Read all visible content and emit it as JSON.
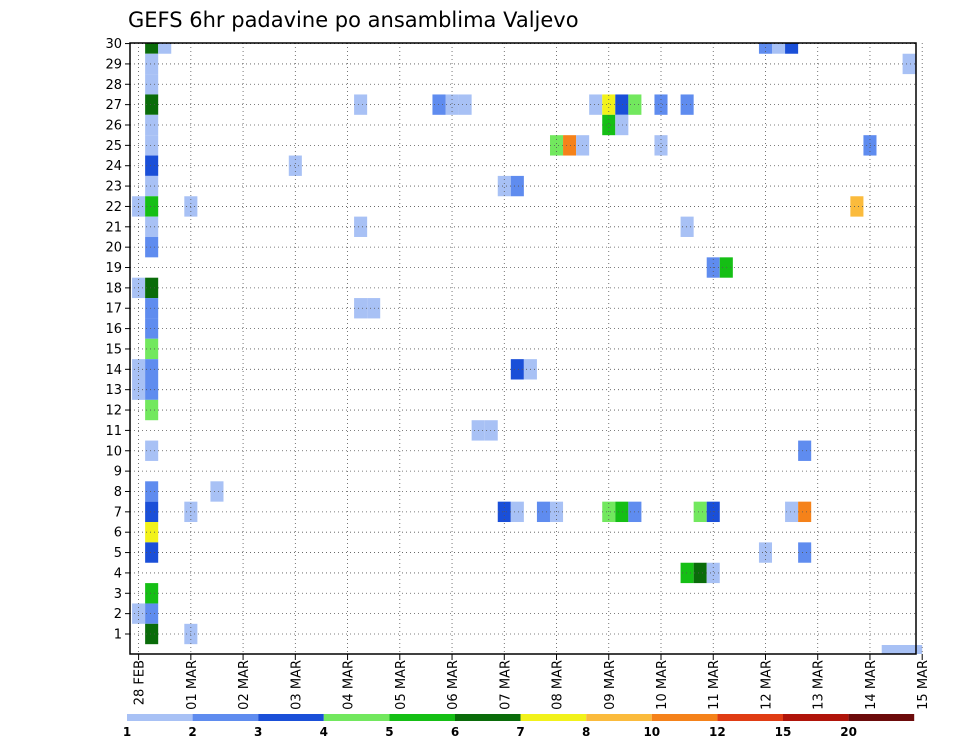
{
  "chart_data": {
    "type": "heatmap",
    "title": "GEFS 6hr padavine po ansamblima Valjevo",
    "xlabel": "",
    "ylabel": "",
    "x_unit": "6h step from 28 FEB 00Z",
    "x_range": [
      0,
      60
    ],
    "y_range": [
      0,
      30
    ],
    "y_ticks": [
      "1",
      "2",
      "3",
      "4",
      "5",
      "6",
      "7",
      "8",
      "9",
      "10",
      "11",
      "12",
      "13",
      "14",
      "15",
      "16",
      "17",
      "18",
      "19",
      "20",
      "21",
      "22",
      "23",
      "24",
      "25",
      "26",
      "27",
      "28",
      "29",
      "30"
    ],
    "x_ticks": [
      "28 FEB",
      "01 MAR",
      "02 MAR",
      "03 MAR",
      "04 MAR",
      "05 MAR",
      "06 MAR",
      "07 MAR",
      "08 MAR",
      "09 MAR",
      "10 MAR",
      "11 MAR",
      "12 MAR",
      "13 MAR",
      "14 MAR",
      "15 MAR"
    ],
    "grid": true,
    "colorbar": {
      "labels": [
        "1",
        "2",
        "3",
        "4",
        "5",
        "6",
        "7",
        "8",
        "10",
        "12",
        "15",
        "20"
      ],
      "colors": [
        "#a8c1f5",
        "#5f8cef",
        "#1a4fd8",
        "#72e85e",
        "#15bf15",
        "#0a6c0a",
        "#f2f21a",
        "#fbbb3c",
        "#f5821a",
        "#e03c14",
        "#b0140a",
        "#6c0b0b"
      ]
    },
    "cells": [
      [
        1,
        30,
        6
      ],
      [
        2,
        30,
        1
      ],
      [
        1,
        29,
        1
      ],
      [
        1,
        28,
        1
      ],
      [
        1,
        27,
        6
      ],
      [
        1,
        26,
        1
      ],
      [
        1,
        25,
        1
      ],
      [
        1,
        24,
        3
      ],
      [
        1,
        23,
        1
      ],
      [
        0,
        22,
        1
      ],
      [
        1,
        22,
        5
      ],
      [
        1,
        21,
        1
      ],
      [
        1,
        20,
        2
      ],
      [
        0,
        18,
        1
      ],
      [
        1,
        18,
        6
      ],
      [
        1,
        17,
        2
      ],
      [
        1,
        16,
        2
      ],
      [
        1,
        15,
        4
      ],
      [
        0,
        14,
        1
      ],
      [
        1,
        14,
        2
      ],
      [
        0,
        13,
        1
      ],
      [
        1,
        13,
        2
      ],
      [
        1,
        12,
        4
      ],
      [
        1,
        10,
        1
      ],
      [
        1,
        8,
        2
      ],
      [
        1,
        7,
        3
      ],
      [
        1,
        6,
        7
      ],
      [
        1,
        5,
        3
      ],
      [
        1,
        3,
        5
      ],
      [
        0,
        2,
        1
      ],
      [
        1,
        2,
        2
      ],
      [
        1,
        1,
        6
      ],
      [
        4,
        22,
        1
      ],
      [
        4,
        7,
        1
      ],
      [
        4,
        1,
        1
      ],
      [
        6,
        8,
        1
      ],
      [
        12,
        24,
        1
      ],
      [
        17,
        27,
        1
      ],
      [
        17,
        21,
        1
      ],
      [
        17,
        17,
        1
      ],
      [
        18,
        17,
        1
      ],
      [
        23,
        27,
        2
      ],
      [
        24,
        27,
        1
      ],
      [
        25,
        27,
        1
      ],
      [
        26,
        11,
        1
      ],
      [
        27,
        11,
        1
      ],
      [
        28,
        23,
        1
      ],
      [
        29,
        23,
        2
      ],
      [
        28,
        7,
        3
      ],
      [
        29,
        7,
        1
      ],
      [
        29,
        14,
        3
      ],
      [
        30,
        14,
        1
      ],
      [
        31,
        7,
        2
      ],
      [
        32,
        7,
        1
      ],
      [
        32,
        25,
        4
      ],
      [
        33,
        25,
        9
      ],
      [
        34,
        25,
        1
      ],
      [
        35,
        27,
        1
      ],
      [
        36,
        27,
        7
      ],
      [
        36,
        26,
        5
      ],
      [
        37,
        27,
        3
      ],
      [
        37,
        26,
        1
      ],
      [
        38,
        27,
        4
      ],
      [
        36,
        7,
        4
      ],
      [
        37,
        7,
        5
      ],
      [
        38,
        7,
        2
      ],
      [
        40,
        27,
        2
      ],
      [
        40,
        25,
        1
      ],
      [
        42,
        27,
        2
      ],
      [
        42,
        21,
        1
      ],
      [
        42,
        4,
        5
      ],
      [
        43,
        4,
        6
      ],
      [
        43,
        7,
        4
      ],
      [
        44,
        7,
        3
      ],
      [
        44,
        4,
        1
      ],
      [
        44,
        19,
        2
      ],
      [
        45,
        19,
        5
      ],
      [
        48,
        30,
        2
      ],
      [
        48,
        5,
        1
      ],
      [
        49,
        30,
        1
      ],
      [
        50,
        30,
        3
      ],
      [
        50,
        7,
        1
      ],
      [
        51,
        7,
        9
      ],
      [
        51,
        10,
        2
      ],
      [
        51,
        5,
        2
      ],
      [
        55,
        22,
        8
      ],
      [
        56,
        25,
        2
      ],
      [
        59,
        29,
        1
      ],
      [
        60,
        1,
        2
      ]
    ],
    "floating_bar": {
      "x_range": [
        56.9,
        60
      ],
      "level": 1
    }
  }
}
